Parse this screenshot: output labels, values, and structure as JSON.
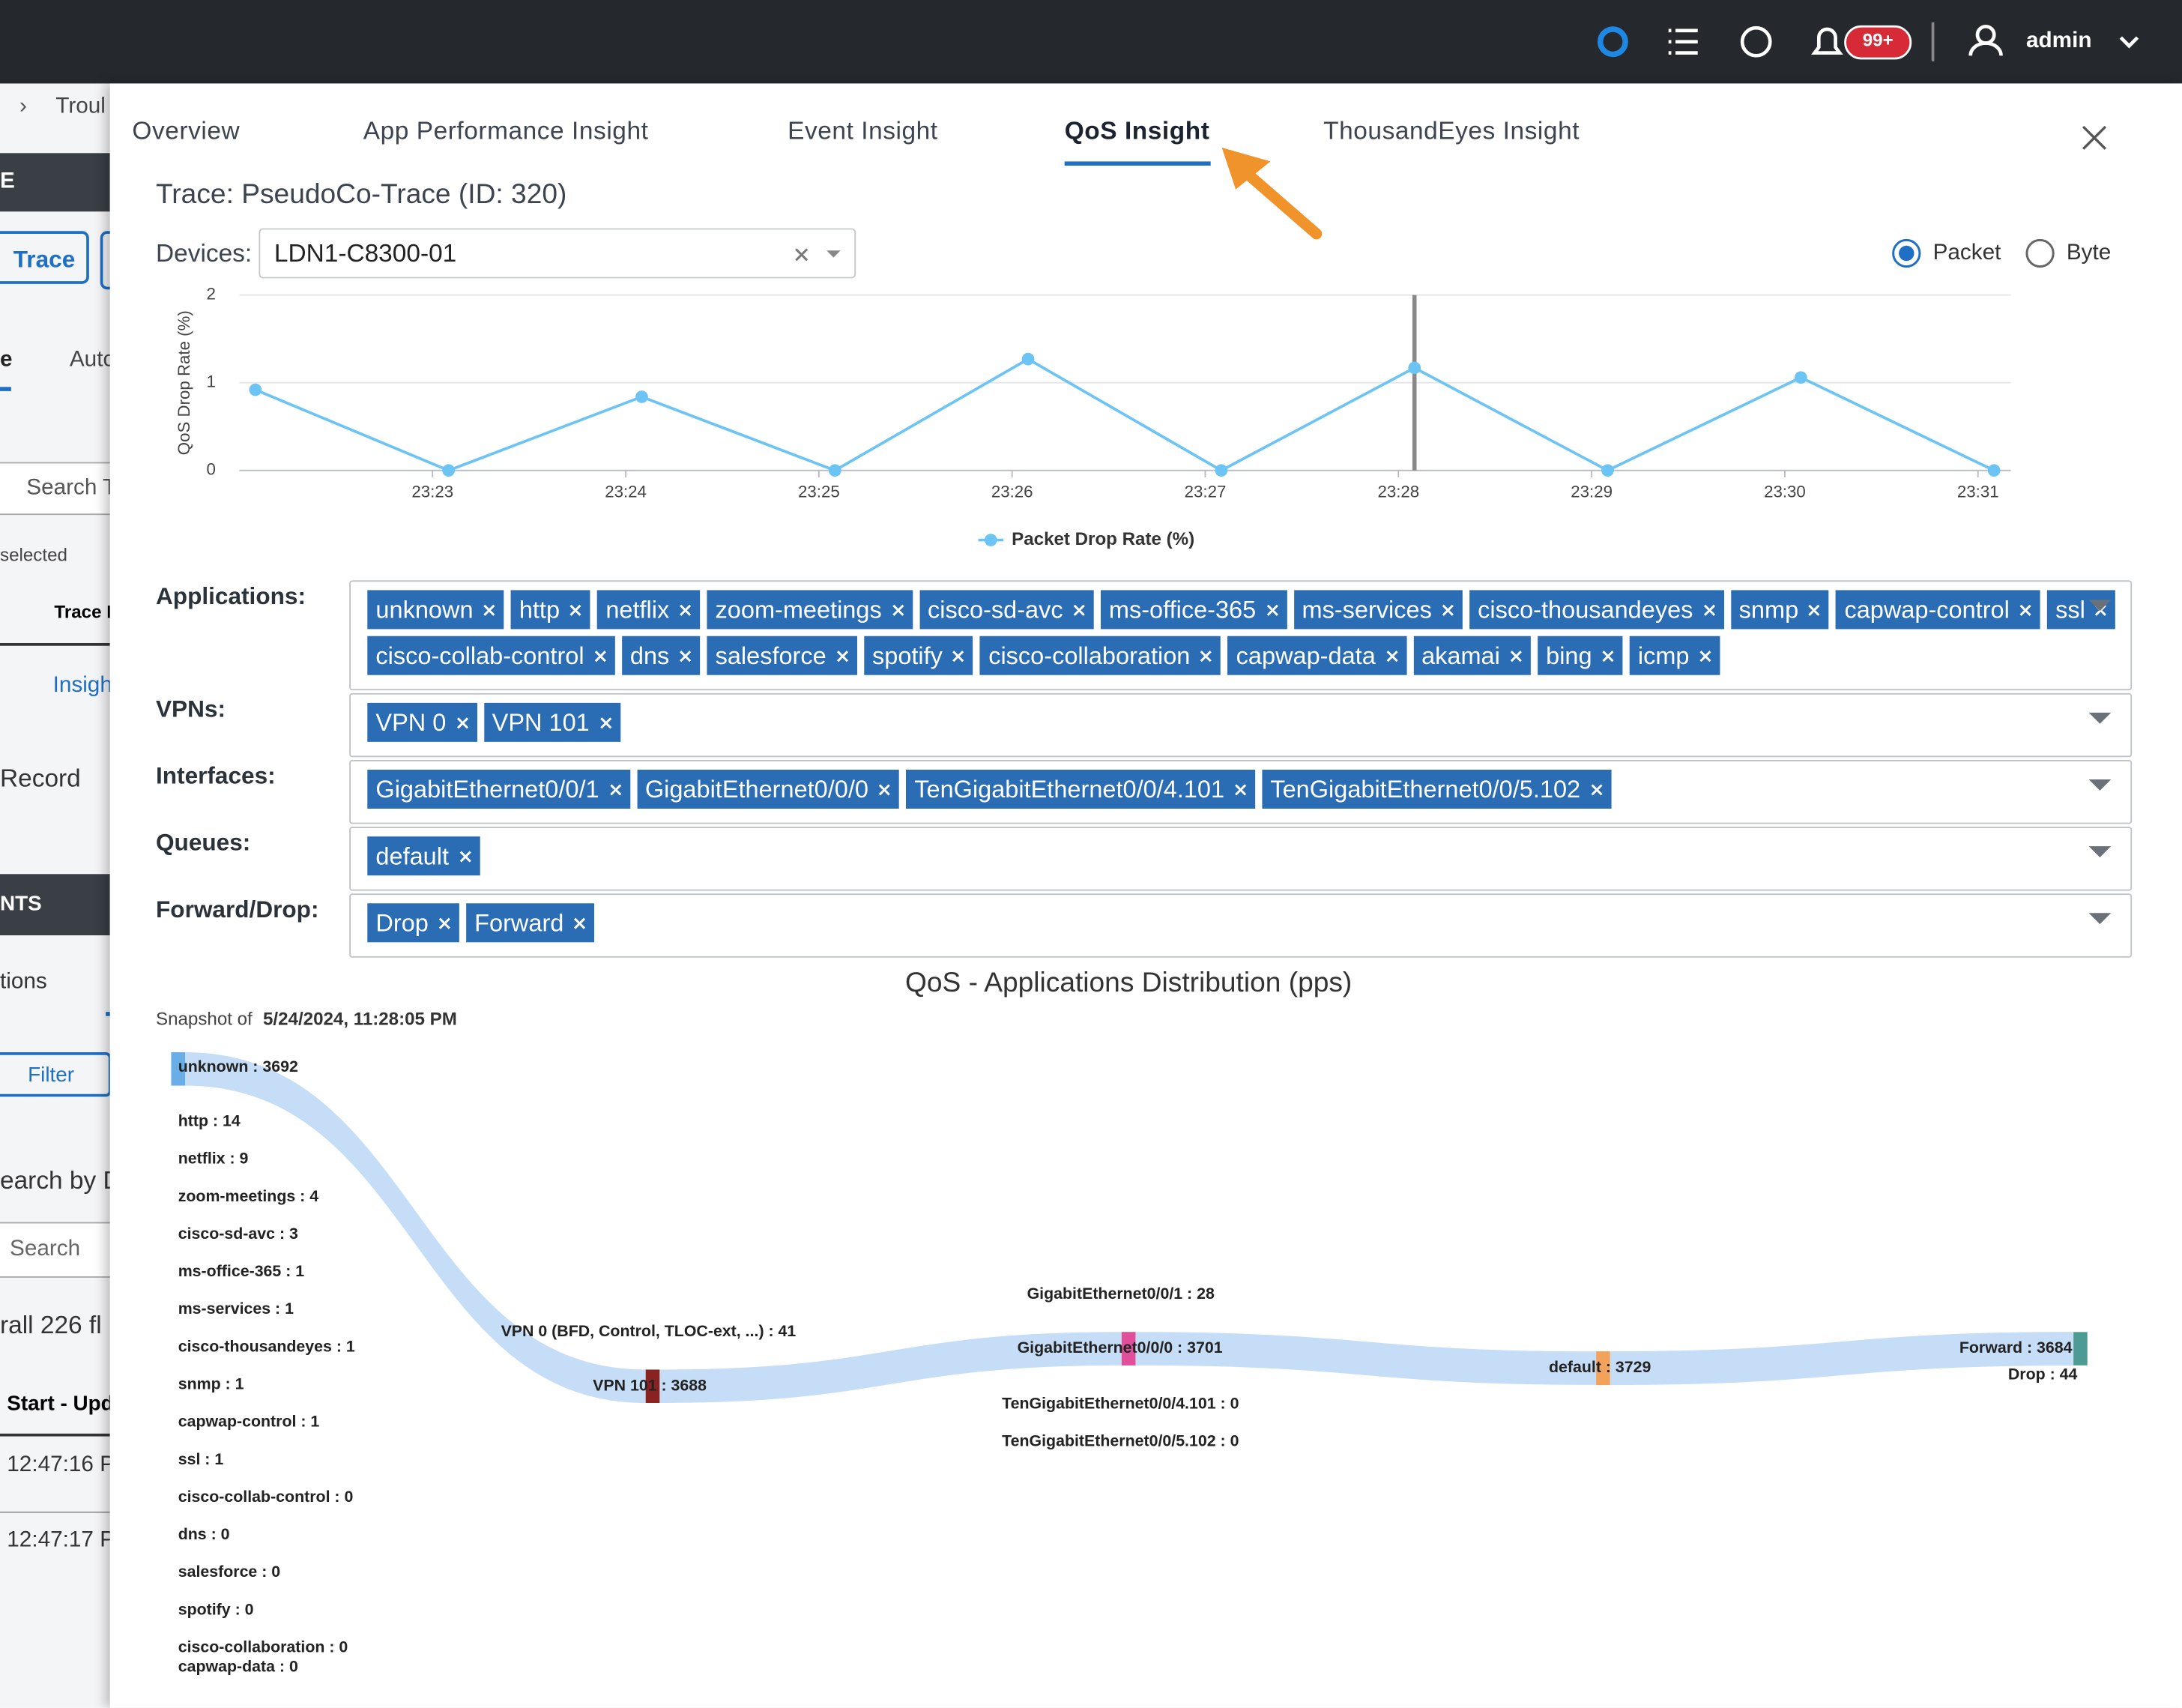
{
  "top_bar": {
    "notification_badge": "99+",
    "user": "admin"
  },
  "background": {
    "breadcrumb": "Troul",
    "bar_text": "E",
    "trace_button": "Trace",
    "tab_a": "e",
    "tab_b": "Autc",
    "search": "Search T",
    "selected": "selected",
    "column": "Trace I",
    "insight": "Insigh",
    "record": "Record",
    "section": "NTS",
    "tab_c": "tions",
    "filter": "Filter",
    "search_by": "earch by D",
    "search2": "Search",
    "overall": "rall 226 fl",
    "table_header": "Start - Upd",
    "rows": [
      "12:47:16 PI",
      "12:47:17 PI"
    ]
  },
  "tabs": {
    "items": [
      "Overview",
      "App Performance Insight",
      "Event Insight",
      "QoS Insight",
      "ThousandEyes Insight"
    ],
    "active": 3
  },
  "trace_title": "Trace: PseudoCo-Trace (ID: 320)",
  "devices": {
    "label": "Devices:",
    "value": "LDN1-C8300-01"
  },
  "mode": {
    "options": [
      "Packet",
      "Byte"
    ],
    "selected": 0
  },
  "drop_rate_chart": {
    "type": "line",
    "y_label": "QoS Drop Rate (%)",
    "legend": "Packet Drop Rate (%)",
    "color": "#6cc4f4",
    "x": [
      1402.083,
      1403.083,
      1404.083,
      1405.083,
      1406.083,
      1407.083,
      1408.083,
      1409.083,
      1410.083,
      1411.083
    ],
    "values": [
      0.92,
      0,
      0.84,
      0,
      1.27,
      0,
      1.17,
      0,
      1.06,
      0
    ],
    "xlim": [
      1402,
      1411.17
    ],
    "ylim": [
      0,
      2
    ],
    "xticks": [
      {
        "value": 1403,
        "label": "23:23"
      },
      {
        "value": 1404,
        "label": "23:24"
      },
      {
        "value": 1405,
        "label": "23:25"
      },
      {
        "value": 1406,
        "label": "23:26"
      },
      {
        "value": 1407,
        "label": "23:27"
      },
      {
        "value": 1408,
        "label": "23:28"
      },
      {
        "value": 1409,
        "label": "23:29"
      },
      {
        "value": 1410,
        "label": "23:30"
      },
      {
        "value": 1411,
        "label": "23:31"
      }
    ],
    "yticks": [
      0,
      1,
      2
    ],
    "grid": true,
    "cursor_x": 1408.083
  },
  "filters": [
    {
      "label": "Applications:",
      "tags": [
        "unknown",
        "http",
        "netflix",
        "zoom-meetings",
        "cisco-sd-avc",
        "ms-office-365",
        "ms-services",
        "cisco-thousandeyes",
        "snmp",
        "capwap-control",
        "ssl",
        "cisco-collab-control",
        "dns",
        "salesforce",
        "spotify",
        "cisco-collaboration",
        "capwap-data",
        "akamai",
        "bing",
        "icmp"
      ]
    },
    {
      "label": "VPNs:",
      "tags": [
        "VPN 0",
        "VPN 101"
      ]
    },
    {
      "label": "Interfaces:",
      "tags": [
        "GigabitEthernet0/0/1",
        "GigabitEthernet0/0/0",
        "TenGigabitEthernet0/0/4.101",
        "TenGigabitEthernet0/0/5.102"
      ]
    },
    {
      "label": "Queues:",
      "tags": [
        "default"
      ]
    },
    {
      "label": "Forward/Drop:",
      "tags": [
        "Drop",
        "Forward"
      ]
    }
  ],
  "sankey": {
    "title": "QoS - Applications Distribution (pps)",
    "snapshot_prefix": "Snapshot of",
    "snapshot_time": "5/24/2024, 11:28:05 PM",
    "band_color": "#c2dbf6",
    "columns": [
      [
        {
          "label": "unknown : 3692",
          "value": 3692,
          "color": "#6aaee8"
        },
        {
          "label": "http : 14",
          "value": 14
        },
        {
          "label": "netflix : 9",
          "value": 9
        },
        {
          "label": "zoom-meetings : 4",
          "value": 4
        },
        {
          "label": "cisco-sd-avc : 3",
          "value": 3
        },
        {
          "label": "ms-office-365 : 1",
          "value": 1
        },
        {
          "label": "ms-services : 1",
          "value": 1
        },
        {
          "label": "cisco-thousandeyes : 1",
          "value": 1
        },
        {
          "label": "snmp : 1",
          "value": 1
        },
        {
          "label": "capwap-control : 1",
          "value": 1
        },
        {
          "label": "ssl : 1",
          "value": 1
        },
        {
          "label": "cisco-collab-control : 0",
          "value": 0
        },
        {
          "label": "dns : 0",
          "value": 0
        },
        {
          "label": "salesforce : 0",
          "value": 0
        },
        {
          "label": "spotify : 0",
          "value": 0
        },
        {
          "label": "cisco-collaboration : 0",
          "value": 0
        },
        {
          "label": "capwap-data : 0",
          "value": 0
        }
      ],
      [
        {
          "label": "VPN 0 (BFD, Control, TLOC-ext, ...) : 41",
          "value": 41
        },
        {
          "label": "VPN 101 : 3688",
          "value": 3688,
          "color": "#8a2222"
        }
      ],
      [
        {
          "label": "GigabitEthernet0/0/1 : 28",
          "value": 28
        },
        {
          "label": "GigabitEthernet0/0/0 : 3701",
          "value": 3701,
          "color": "#e0509a"
        },
        {
          "label": "TenGigabitEthernet0/0/4.101 : 0",
          "value": 0
        },
        {
          "label": "TenGigabitEthernet0/0/5.102 : 0",
          "value": 0
        }
      ],
      [
        {
          "label": "default : 3729",
          "value": 3729,
          "color": "#f2a25a"
        }
      ],
      [
        {
          "label": "Forward : 3684",
          "value": 3684,
          "color": "#4e9a94"
        },
        {
          "label": "Drop : 44",
          "value": 44
        }
      ]
    ]
  }
}
